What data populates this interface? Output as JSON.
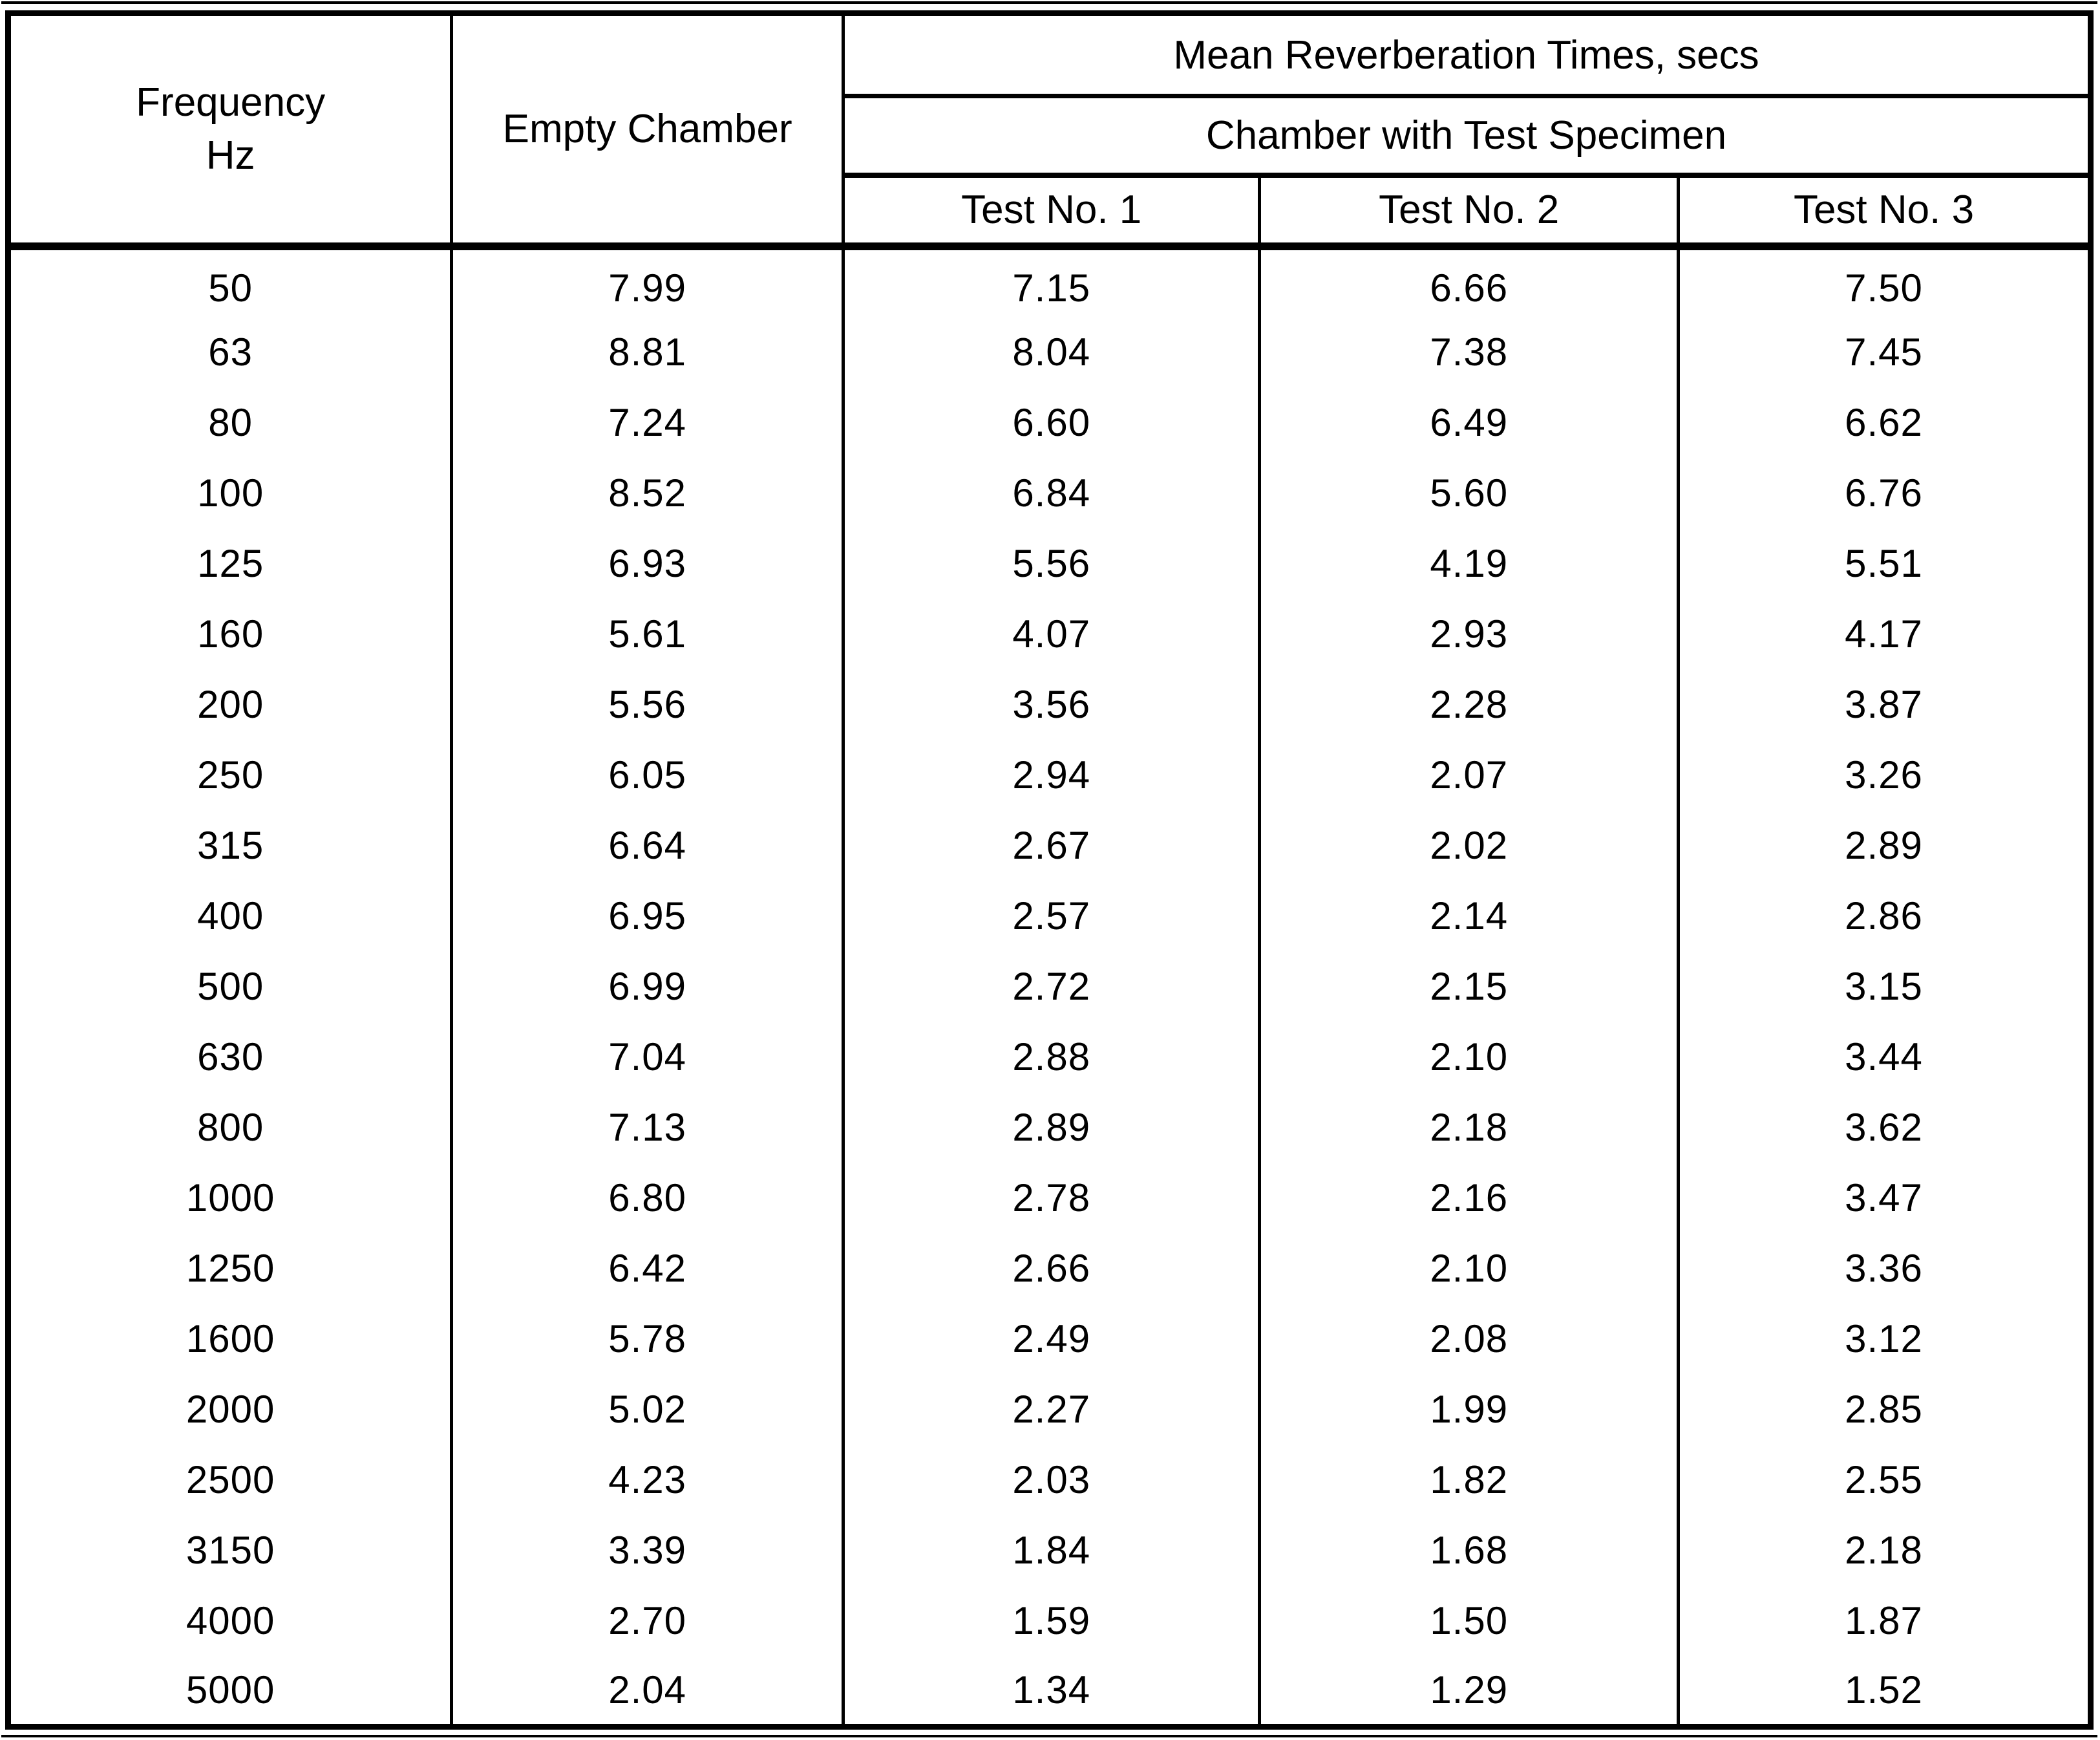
{
  "header": {
    "frequency_line1": "Frequency",
    "frequency_line2": "Hz",
    "empty_chamber": "Empty Chamber",
    "group_title": "Mean Reverberation Times, secs",
    "subgroup_title": "Chamber with Test Specimen",
    "test1": "Test No. 1",
    "test2": "Test No. 2",
    "test3": "Test No. 3"
  },
  "colors": {
    "ink": "#000000",
    "paper": "#ffffff"
  },
  "rows": [
    {
      "freq": "50",
      "empty": "7.99",
      "t1": "7.15",
      "t2": "6.66",
      "t3": "7.50"
    },
    {
      "freq": "63",
      "empty": "8.81",
      "t1": "8.04",
      "t2": "7.38",
      "t3": "7.45"
    },
    {
      "freq": "80",
      "empty": "7.24",
      "t1": "6.60",
      "t2": "6.49",
      "t3": "6.62"
    },
    {
      "freq": "100",
      "empty": "8.52",
      "t1": "6.84",
      "t2": "5.60",
      "t3": "6.76"
    },
    {
      "freq": "125",
      "empty": "6.93",
      "t1": "5.56",
      "t2": "4.19",
      "t3": "5.51"
    },
    {
      "freq": "160",
      "empty": "5.61",
      "t1": "4.07",
      "t2": "2.93",
      "t3": "4.17"
    },
    {
      "freq": "200",
      "empty": "5.56",
      "t1": "3.56",
      "t2": "2.28",
      "t3": "3.87"
    },
    {
      "freq": "250",
      "empty": "6.05",
      "t1": "2.94",
      "t2": "2.07",
      "t3": "3.26"
    },
    {
      "freq": "315",
      "empty": "6.64",
      "t1": "2.67",
      "t2": "2.02",
      "t3": "2.89"
    },
    {
      "freq": "400",
      "empty": "6.95",
      "t1": "2.57",
      "t2": "2.14",
      "t3": "2.86"
    },
    {
      "freq": "500",
      "empty": "6.99",
      "t1": "2.72",
      "t2": "2.15",
      "t3": "3.15"
    },
    {
      "freq": "630",
      "empty": "7.04",
      "t1": "2.88",
      "t2": "2.10",
      "t3": "3.44"
    },
    {
      "freq": "800",
      "empty": "7.13",
      "t1": "2.89",
      "t2": "2.18",
      "t3": "3.62"
    },
    {
      "freq": "1000",
      "empty": "6.80",
      "t1": "2.78",
      "t2": "2.16",
      "t3": "3.47"
    },
    {
      "freq": "1250",
      "empty": "6.42",
      "t1": "2.66",
      "t2": "2.10",
      "t3": "3.36"
    },
    {
      "freq": "1600",
      "empty": "5.78",
      "t1": "2.49",
      "t2": "2.08",
      "t3": "3.12"
    },
    {
      "freq": "2000",
      "empty": "5.02",
      "t1": "2.27",
      "t2": "1.99",
      "t3": "2.85"
    },
    {
      "freq": "2500",
      "empty": "4.23",
      "t1": "2.03",
      "t2": "1.82",
      "t3": "2.55"
    },
    {
      "freq": "3150",
      "empty": "3.39",
      "t1": "1.84",
      "t2": "1.68",
      "t3": "2.18"
    },
    {
      "freq": "4000",
      "empty": "2.70",
      "t1": "1.59",
      "t2": "1.50",
      "t3": "1.87"
    },
    {
      "freq": "5000",
      "empty": "2.04",
      "t1": "1.34",
      "t2": "1.29",
      "t3": "1.52"
    }
  ]
}
